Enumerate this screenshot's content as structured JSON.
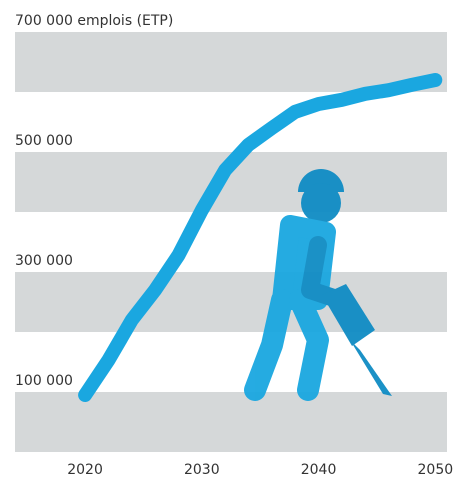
{
  "chart_data": {
    "type": "line",
    "x": [
      2020,
      2022,
      2024,
      2026,
      2028,
      2030,
      2032,
      2034,
      2036,
      2038,
      2040,
      2042,
      2044,
      2046,
      2048,
      2050
    ],
    "series": [
      {
        "color": "#1aa7e0",
        "values": [
          95000,
          153000,
          220000,
          270000,
          328000,
          403000,
          470000,
          512000,
          540000,
          567000,
          580000,
          587000,
          597000,
          603000,
          612000,
          620000
        ]
      }
    ],
    "xlim": [
      2014,
      2051
    ],
    "xticks": [
      2020,
      2030,
      2040,
      2050
    ],
    "ylim": [
      0,
      700000
    ],
    "yticks": [
      {
        "value": 100000,
        "label": "100 000"
      },
      {
        "value": 300000,
        "label": "300 000"
      },
      {
        "value": 500000,
        "label": "500 000"
      },
      {
        "value": 700000,
        "label": "700 000 emplois (ETP)"
      }
    ],
    "bands": [
      [
        0,
        100000
      ],
      [
        200000,
        300000
      ],
      [
        400000,
        500000
      ],
      [
        600000,
        700000
      ]
    ],
    "band_color": "#d5d8d9"
  }
}
